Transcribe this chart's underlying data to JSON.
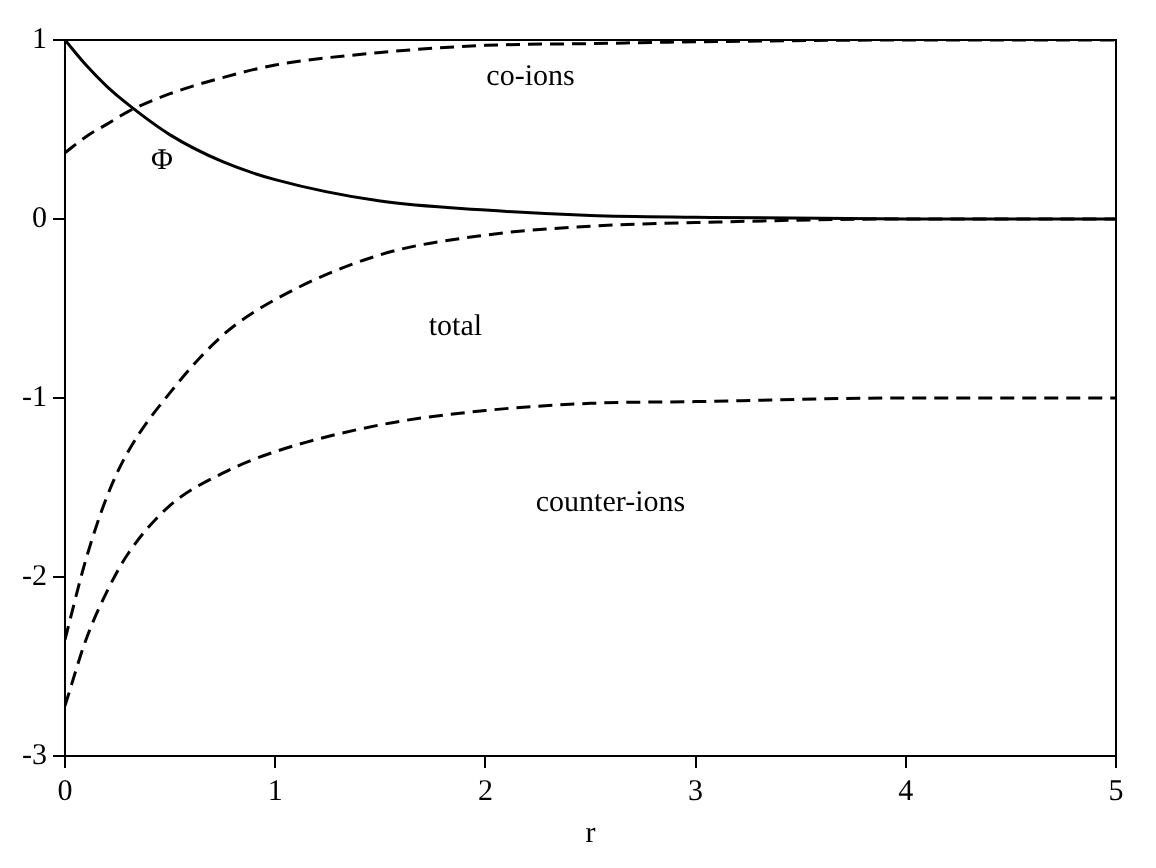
{
  "chart_data": {
    "type": "line",
    "xlabel": "r",
    "x": [
      0,
      0.1,
      0.2,
      0.3,
      0.5,
      0.75,
      1,
      1.5,
      2,
      2.5,
      3,
      4,
      5
    ],
    "series": [
      {
        "name": "Φ",
        "color": "#000000",
        "line_style": "solid",
        "values": [
          1,
          0.86,
          0.74,
          0.64,
          0.47,
          0.32,
          0.22,
          0.1,
          0.05,
          0.02,
          0.01,
          0,
          0
        ]
      },
      {
        "name": "co-ions",
        "color": "#000000",
        "line_style": "dashed",
        "values": [
          0.37,
          0.46,
          0.53,
          0.6,
          0.7,
          0.79,
          0.86,
          0.93,
          0.97,
          0.98,
          0.99,
          1,
          1
        ]
      },
      {
        "name": "total",
        "color": "#000000",
        "line_style": "dashed",
        "values": [
          -2.35,
          -1.9,
          -1.55,
          -1.3,
          -0.97,
          -0.65,
          -0.45,
          -0.2,
          -0.09,
          -0.04,
          -0.02,
          0,
          0
        ]
      },
      {
        "name": "counter-ions",
        "color": "#000000",
        "line_style": "dashed",
        "values": [
          -2.72,
          -2.35,
          -2.08,
          -1.87,
          -1.6,
          -1.42,
          -1.3,
          -1.15,
          -1.07,
          -1.03,
          -1.02,
          -1,
          -1
        ]
      }
    ],
    "xlim": [
      0,
      5
    ],
    "xticks": [
      0,
      1,
      2,
      3,
      4,
      5
    ],
    "ylim": [
      -3,
      1
    ],
    "yticks": [
      -3,
      -2,
      -1,
      0,
      1
    ],
    "grid": false,
    "legend": false,
    "marker": "none"
  }
}
